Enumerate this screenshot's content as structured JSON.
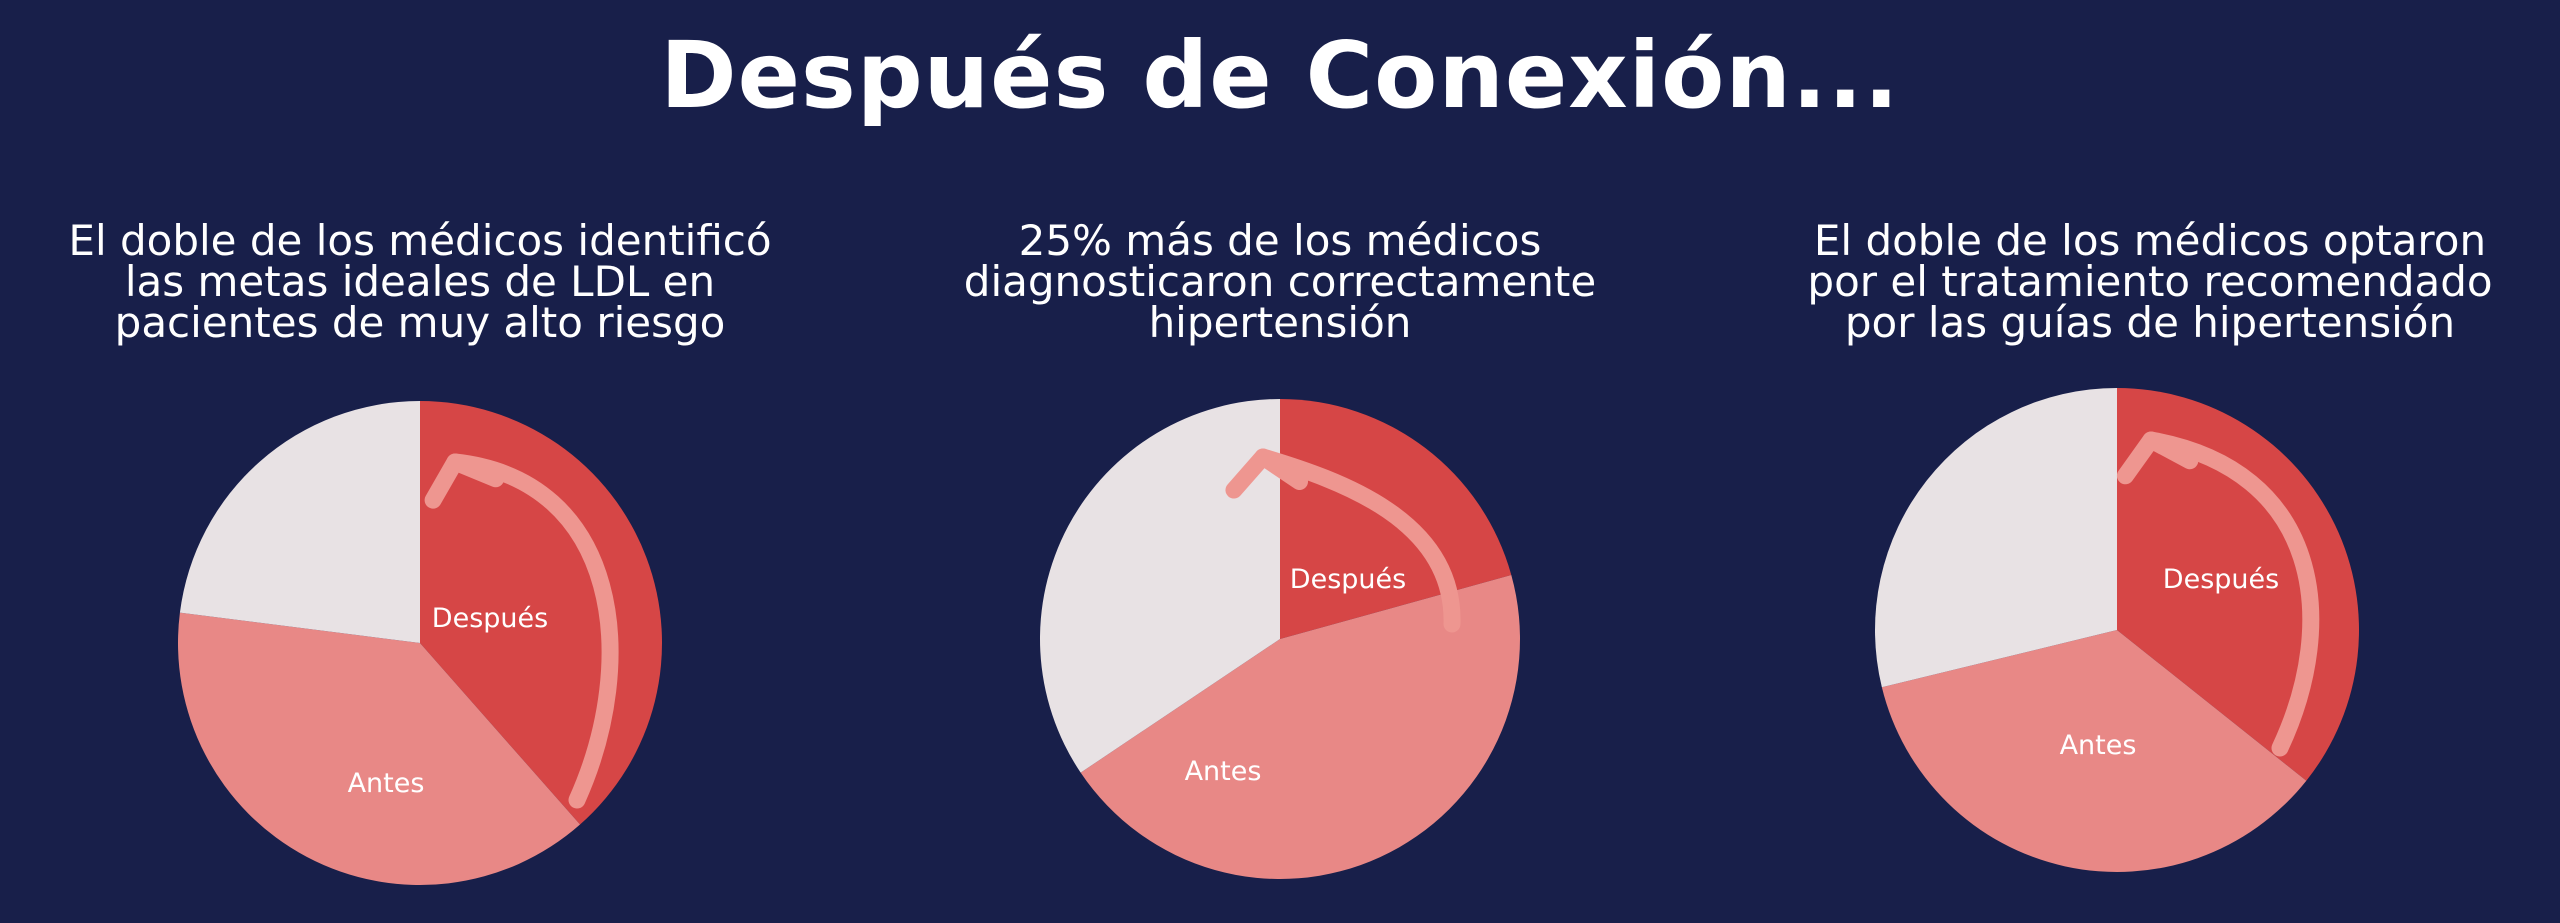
{
  "page": {
    "title": "Después de Conexión..."
  },
  "colors": {
    "background": "#181f4a",
    "despues": "#d64646",
    "antes": "#e88886",
    "resto": "#e8e2e4",
    "arrow": "#ee9690"
  },
  "chart_data": [
    {
      "type": "pie",
      "title_lines": [
        "El doble de los médicos identificó",
        "las metas ideales de LDL en",
        "pacientes de muy alto riesgo"
      ],
      "slices": [
        {
          "label": "Después",
          "value": 38.5,
          "color": "#d64646"
        },
        {
          "label": "Antes",
          "value": 38.5,
          "color": "#e88886"
        },
        {
          "label": "",
          "value": 23.0,
          "color": "#e8e2e4"
        }
      ]
    },
    {
      "type": "pie",
      "title_lines": [
        "25% más de los médicos",
        "diagnosticaron correctamente",
        "hipertensión"
      ],
      "slices": [
        {
          "label": "Después",
          "value": 20.7,
          "color": "#d64646"
        },
        {
          "label": "Antes",
          "value": 44.9,
          "color": "#e88886"
        },
        {
          "label": "",
          "value": 34.4,
          "color": "#e8e2e4"
        }
      ]
    },
    {
      "type": "pie",
      "title_lines": [
        "El doble de los médicos optaron",
        "por el tratamiento recomendado",
        "por las guías de hipertensión"
      ],
      "slices": [
        {
          "label": "Después",
          "value": 35.7,
          "color": "#d64646"
        },
        {
          "label": "Antes",
          "value": 35.5,
          "color": "#e88886"
        },
        {
          "label": "",
          "value": 28.8,
          "color": "#e8e2e4"
        }
      ]
    }
  ]
}
